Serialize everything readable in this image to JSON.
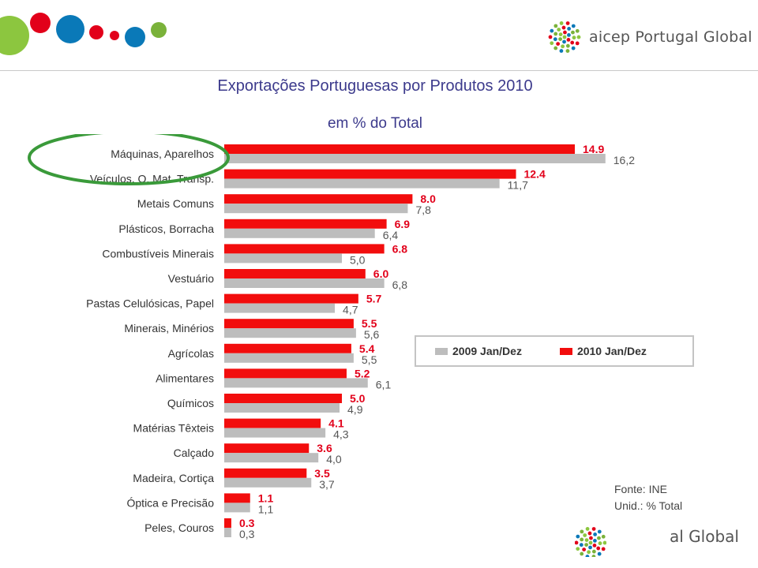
{
  "header": {
    "brand_name": "aicep Portugal Global",
    "brand_colors": [
      "#8cc63f",
      "#e2001a",
      "#0a79b8",
      "#7ab23a"
    ]
  },
  "chart_data": {
    "type": "bar",
    "orientation": "horizontal",
    "title": "Exportações Portuguesas por Produtos 2010",
    "subtitle": "em % do Total",
    "categories": [
      "Máquinas, Aparelhos",
      "Veículos, O. Mat. Transp.",
      "Metais Comuns",
      "Plásticos, Borracha",
      "Combustíveis Minerais",
      "Vestuário",
      "Pastas Celulósicas, Papel",
      "Minerais, Minérios",
      "Agrícolas",
      "Alimentares",
      "Químicos",
      "Matérias Têxteis",
      "Calçado",
      "Madeira, Cortiça",
      "Óptica e Precisão",
      "Peles, Couros"
    ],
    "series": [
      {
        "name": "2010 Jan/Dez",
        "color": "#f20d0d",
        "values": [
          14.9,
          12.4,
          8.0,
          6.9,
          6.8,
          6.0,
          5.7,
          5.5,
          5.4,
          5.2,
          5.0,
          4.1,
          3.6,
          3.5,
          1.1,
          0.3
        ],
        "labels": [
          "14.9",
          "12.4",
          "8.0",
          "6.9",
          "6.8",
          "6.0",
          "5.7",
          "5.5",
          "5.4",
          "5.2",
          "5.0",
          "4.1",
          "3.6",
          "3.5",
          "1.1",
          "0.3"
        ]
      },
      {
        "name": "2009 Jan/Dez",
        "color": "#bdbdbd",
        "values": [
          16.2,
          11.7,
          7.8,
          6.4,
          5.0,
          6.8,
          4.7,
          5.6,
          5.5,
          6.1,
          4.9,
          4.3,
          4.0,
          3.7,
          1.1,
          0.3
        ],
        "labels": [
          "16,2",
          "11,7",
          "7,8",
          "6,4",
          "5,0",
          "6,8",
          "4,7",
          "5,6",
          "5,5",
          "6,1",
          "4,9",
          "4,3",
          "4,0",
          "3,7",
          "1,1",
          "0,3"
        ]
      }
    ],
    "xlim": [
      0,
      20
    ],
    "grid": false,
    "legend_position": "right",
    "highlight": "Máquinas, Aparelhos",
    "highlight_color": "#3a9a3a"
  },
  "legend": {
    "items": [
      {
        "label": "2009 Jan/Dez",
        "color": "#bdbdbd"
      },
      {
        "label": "2010 Jan/Dez",
        "color": "#f20d0d"
      }
    ]
  },
  "source": {
    "line1": "Fonte: INE",
    "line2": "Unid.: % Total"
  },
  "footer": {
    "brand_fragment": "al Global"
  }
}
